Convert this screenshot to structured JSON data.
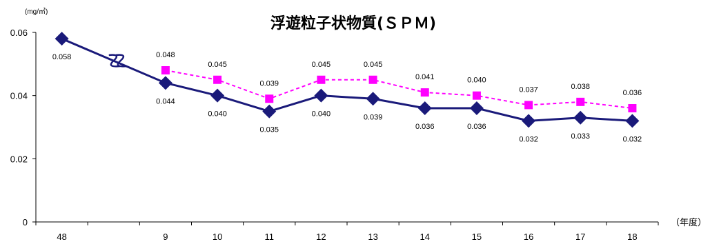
{
  "chart_data": {
    "type": "line",
    "title": "浮遊粒子状物質(ＳＰＭ)",
    "ylabel": "(mg/㎥)",
    "xlabel": "（年度）",
    "categories": [
      "48",
      "",
      "9",
      "10",
      "11",
      "12",
      "13",
      "14",
      "15",
      "16",
      "17",
      "18"
    ],
    "ylim": [
      0,
      0.06
    ],
    "yticks": [
      "0",
      "0.02",
      "0.04",
      "0.06"
    ],
    "axis_break": "between 48 and 9",
    "grid": false,
    "series": [
      {
        "color": "#1a1a7a",
        "style": "solid",
        "marker": "diamond",
        "values": [
          0.058,
          null,
          0.044,
          0.04,
          0.035,
          0.04,
          0.039,
          0.036,
          0.036,
          0.032,
          0.033,
          0.032
        ],
        "labels": [
          "0.058",
          "",
          "0.044",
          "0.040",
          "0.035",
          "0.040",
          "0.039",
          "0.036",
          "0.036",
          "0.032",
          "0.033",
          "0.032"
        ]
      },
      {
        "color": "#ff00ff",
        "style": "dashed",
        "marker": "square",
        "values": [
          null,
          null,
          0.048,
          0.045,
          0.039,
          0.045,
          0.045,
          0.041,
          0.04,
          0.037,
          0.038,
          0.036
        ],
        "labels": [
          "",
          "",
          "0.048",
          "0.045",
          "0.039",
          "0.045",
          "0.045",
          "0.041",
          "0.040",
          "0.037",
          "0.038",
          "0.036"
        ]
      }
    ]
  }
}
